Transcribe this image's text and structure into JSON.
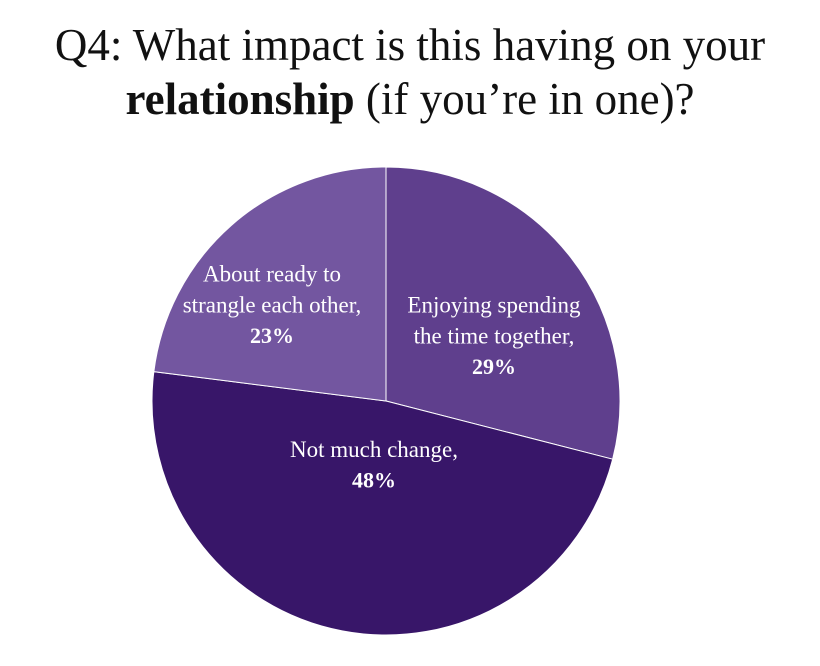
{
  "title": {
    "prefix": "Q4: What impact is this having on your",
    "bold": "relationship",
    "suffix": "(if you’re in one)?"
  },
  "chart_data": {
    "type": "pie",
    "slices": [
      {
        "name": "Enjoying spending the time together,",
        "label_lines": [
          "Enjoying spending",
          "the time together,"
        ],
        "value": 29,
        "value_label": "29%",
        "color": "#5f3f8d"
      },
      {
        "name": "Not much change,",
        "label_lines": [
          "Not much change,"
        ],
        "value": 48,
        "value_label": "48%",
        "color": "#381669"
      },
      {
        "name": "About ready to strangle each other,",
        "label_lines": [
          "About ready to",
          "strangle each other,"
        ],
        "value": 23,
        "value_label": "23%",
        "color": "#7356a0"
      }
    ],
    "start": "top",
    "direction": "clockwise"
  }
}
